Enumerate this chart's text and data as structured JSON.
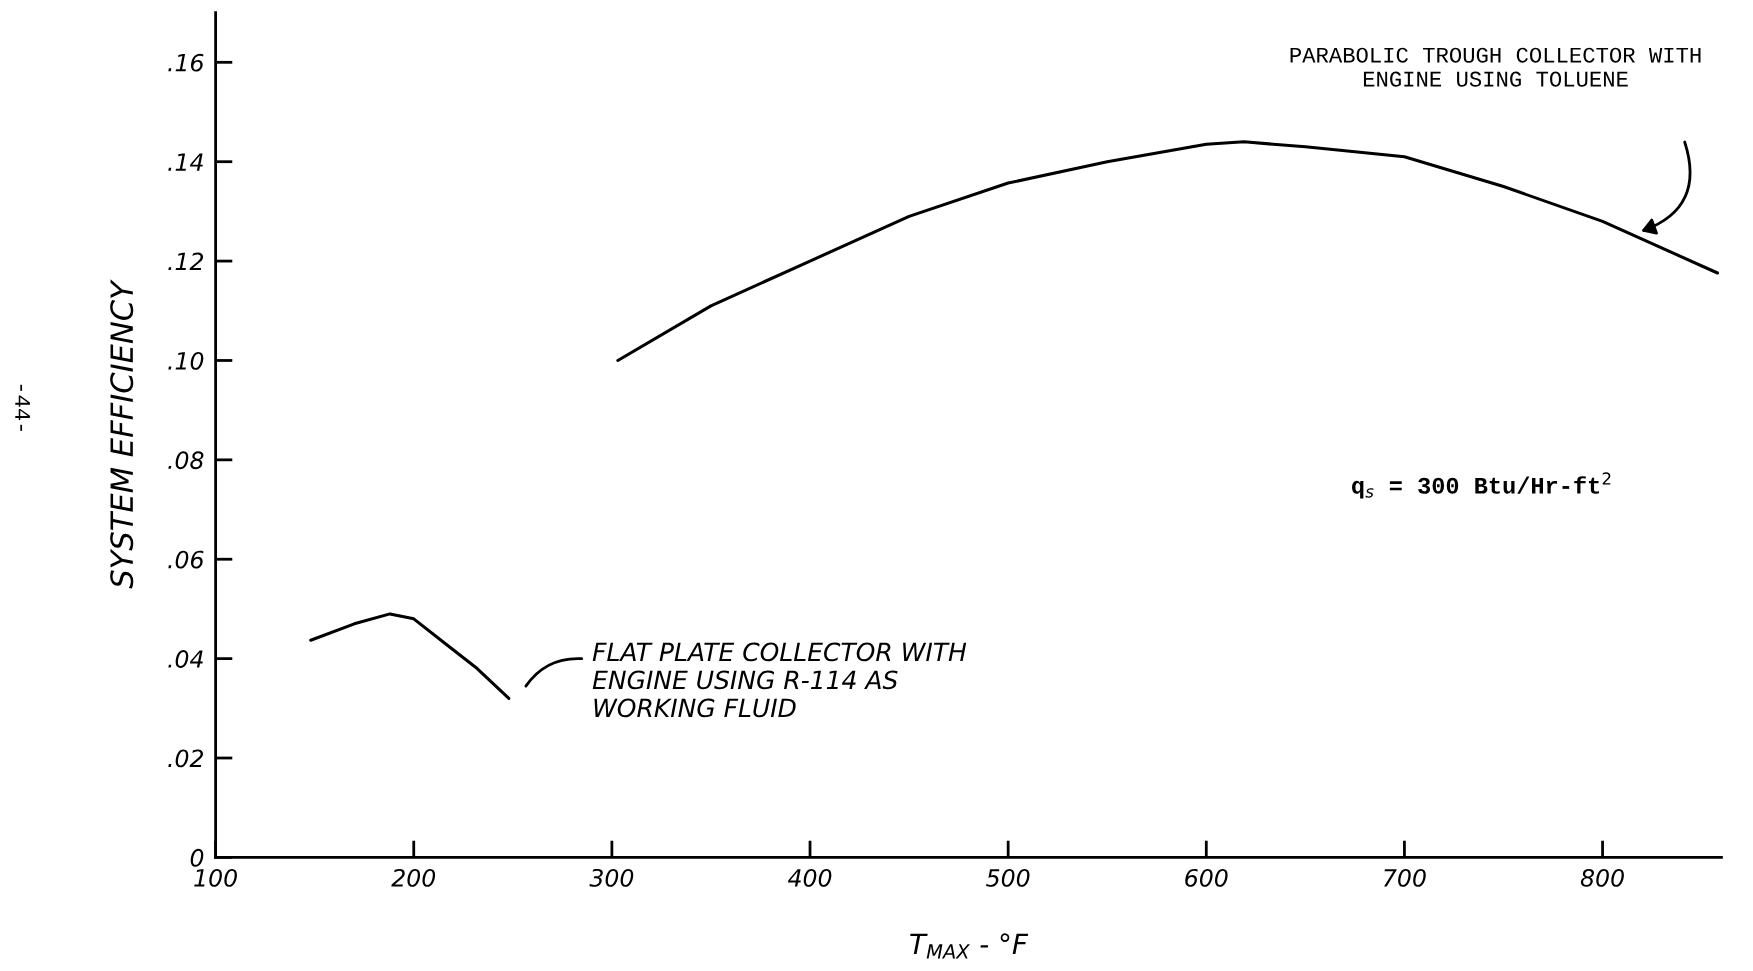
{
  "chart_data": {
    "type": "line",
    "xlabel": "T$_{MAX}$ - °F",
    "ylabel": "SYSTEM EFFICIENCY",
    "xlim": [
      100,
      860
    ],
    "ylim": [
      0,
      0.17
    ],
    "xticks": [
      100,
      200,
      300,
      400,
      500,
      600,
      700,
      800
    ],
    "yticks": [
      {
        "value": 0,
        "label": "0"
      },
      {
        "value": 0.02,
        "label": ".02"
      },
      {
        "value": 0.04,
        "label": ".04"
      },
      {
        "value": 0.06,
        "label": ".06"
      },
      {
        "value": 0.08,
        "label": ".08"
      },
      {
        "value": 0.1,
        "label": ".10"
      },
      {
        "value": 0.12,
        "label": ".12"
      },
      {
        "value": 0.14,
        "label": ".14"
      },
      {
        "value": 0.16,
        "label": ".16"
      }
    ],
    "grid": false,
    "legend": false,
    "marker": "none",
    "line_style": "solid",
    "series": [
      {
        "color": "#000000",
        "x": [
          148,
          170,
          188,
          200,
          216,
          232,
          248
        ],
        "values": [
          0.0437,
          0.047,
          0.049,
          0.048,
          0.043,
          0.038,
          0.032
        ]
      },
      {
        "color": "#000000",
        "x": [
          303,
          350,
          400,
          450,
          500,
          550,
          600,
          619,
          650,
          700,
          750,
          800,
          858
        ],
        "values": [
          0.1,
          0.111,
          0.12,
          0.129,
          0.1357,
          0.14,
          0.1435,
          0.144,
          0.143,
          0.141,
          0.135,
          0.128,
          0.1176
        ]
      }
    ],
    "annotations": [
      "PARABOLIC TROUGH COLLECTOR WITH\nENGINE USING TOLUENE",
      "FLAT PLATE COLLECTOR WITH\nENGINE USING R-114 AS\nWORKING FLUID",
      "q$_{s}$ = 300 Btu/Hr-ft$^{2}$",
      "-44-"
    ]
  }
}
